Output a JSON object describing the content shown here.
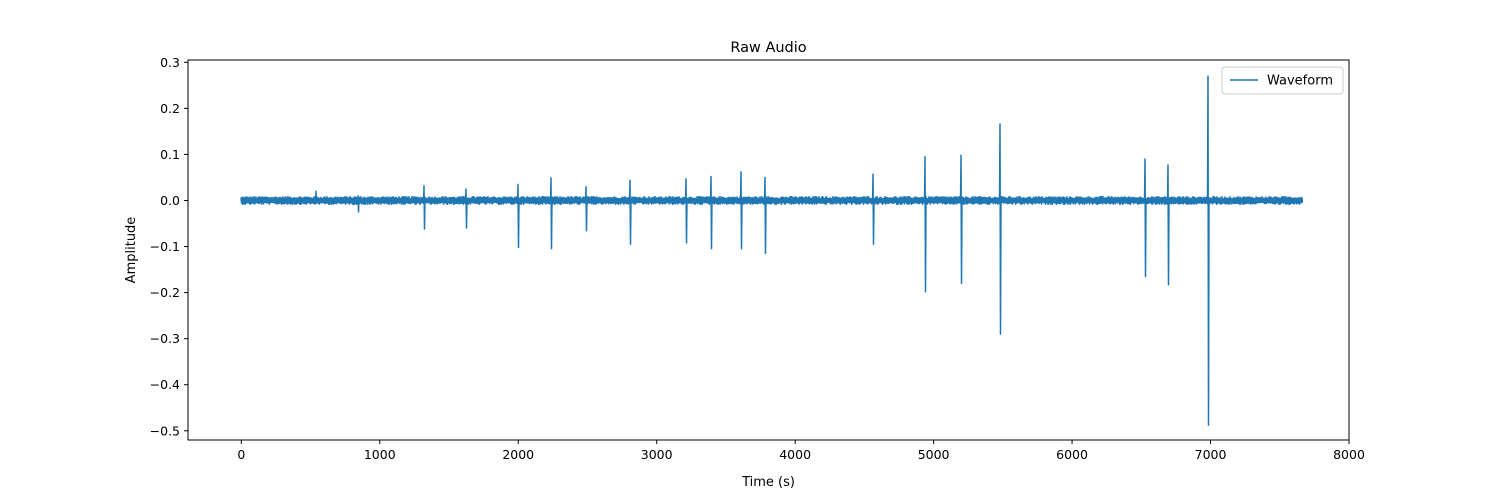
{
  "chart_data": {
    "type": "line",
    "title": "Raw Audio",
    "xlabel": "Time (s)",
    "ylabel": "Amplitude",
    "xlim": [
      -385,
      8000
    ],
    "ylim": [
      -0.52,
      0.305
    ],
    "xticks": [
      0,
      1000,
      2000,
      3000,
      4000,
      5000,
      6000,
      7000,
      8000
    ],
    "xtick_labels": [
      "0",
      "1000",
      "2000",
      "3000",
      "4000",
      "5000",
      "6000",
      "7000",
      "8000"
    ],
    "yticks": [
      0.3,
      0.2,
      0.1,
      0.0,
      -0.1,
      -0.2,
      -0.3,
      -0.4,
      -0.5
    ],
    "ytick_labels": [
      "0.3",
      "0.2",
      "0.1",
      "0.0",
      "−0.1",
      "−0.2",
      "−0.3",
      "−0.4",
      "−0.5"
    ],
    "grid": false,
    "legend_position": "top-right",
    "color": "#1f77b4",
    "series": [
      {
        "name": "Waveform",
        "x_start": 0,
        "x_end": 7660,
        "noise_amplitude": 0.006,
        "spikes": [
          {
            "x": 540,
            "max": 0.02,
            "min": -0.005
          },
          {
            "x": 845,
            "max": 0.01,
            "min": -0.025
          },
          {
            "x": 1320,
            "max": 0.032,
            "min": -0.062
          },
          {
            "x": 1620,
            "max": 0.025,
            "min": -0.06
          },
          {
            "x": 1995,
            "max": 0.035,
            "min": -0.102
          },
          {
            "x": 2240,
            "max": 0.049,
            "min": -0.105
          },
          {
            "x": 2490,
            "max": 0.03,
            "min": -0.066
          },
          {
            "x": 2810,
            "max": 0.044,
            "min": -0.095
          },
          {
            "x": 3210,
            "max": 0.047,
            "min": -0.092
          },
          {
            "x": 3390,
            "max": 0.052,
            "min": -0.105
          },
          {
            "x": 3610,
            "max": 0.062,
            "min": -0.105
          },
          {
            "x": 3780,
            "max": 0.05,
            "min": -0.115
          },
          {
            "x": 4560,
            "max": 0.057,
            "min": -0.095
          },
          {
            "x": 4935,
            "max": 0.095,
            "min": -0.198
          },
          {
            "x": 5195,
            "max": 0.098,
            "min": -0.18
          },
          {
            "x": 5480,
            "max": 0.166,
            "min": -0.29
          },
          {
            "x": 6525,
            "max": 0.09,
            "min": -0.165
          },
          {
            "x": 6695,
            "max": 0.077,
            "min": -0.183
          },
          {
            "x": 6985,
            "max": 0.27,
            "min": -0.488
          }
        ]
      }
    ]
  }
}
